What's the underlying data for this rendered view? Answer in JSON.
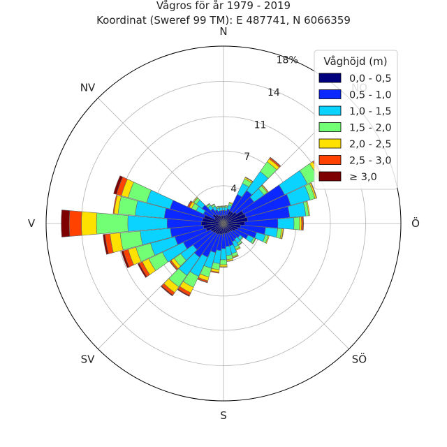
{
  "title_line1": "Vågros för år 1979 - 2019",
  "title_line2": "Koordinat (Sweref 99 TM): E 487741, N 6066359",
  "chart_data": {
    "type": "windrose",
    "title": "Vågros för år 1979 - 2019",
    "subtitle": "Koordinat (Sweref 99 TM): E 487741, N 6066359",
    "direction_labels": [
      "N",
      "NO",
      "Ö",
      "SÖ",
      "S",
      "SV",
      "V",
      "NV"
    ],
    "radial_ticks": [
      {
        "value": 3.75,
        "label": "4"
      },
      {
        "value": 7.2,
        "label": "7"
      },
      {
        "value": 10.6,
        "label": "11"
      },
      {
        "value": 14.1,
        "label": "14"
      },
      {
        "value": 17.6,
        "label": "18%"
      }
    ],
    "rmax": 17.6,
    "sectors": 36,
    "sector_unit": "degrees clockwise from north",
    "legend_title": "Våghöjd (m)",
    "legend_position": "top-right",
    "bins": [
      {
        "label": "0,0 - 0,5",
        "color": "#00007f"
      },
      {
        "label": "0,5 - 1,0",
        "color": "#0a28ff"
      },
      {
        "label": "1,0 - 1,5",
        "color": "#0bd3ff"
      },
      {
        "label": "1,5 - 2,0",
        "color": "#72ff75"
      },
      {
        "label": "2,0 - 2,5",
        "color": "#ffe100"
      },
      {
        "label": "2,5 - 3,0",
        "color": "#ff4200"
      },
      {
        "label": "≥ 3,0",
        "color": "#7f0000"
      }
    ],
    "data": [
      {
        "dir": 0,
        "values": [
          0.8,
          0.5,
          0.3,
          0.1,
          0.05,
          0.0,
          0.0
        ]
      },
      {
        "dir": 10,
        "values": [
          0.8,
          0.5,
          0.3,
          0.15,
          0.05,
          0.0,
          0.0
        ]
      },
      {
        "dir": 20,
        "values": [
          0.9,
          0.6,
          0.4,
          0.2,
          0.1,
          0.0,
          0.0
        ]
      },
      {
        "dir": 30,
        "values": [
          1.4,
          1.8,
          1.2,
          0.5,
          0.15,
          0.05,
          0.0
        ]
      },
      {
        "dir": 40,
        "values": [
          1.4,
          2.6,
          2.3,
          1.2,
          0.35,
          0.15,
          0.05
        ]
      },
      {
        "dir": 50,
        "values": [
          1.6,
          2.1,
          1.2,
          0.4,
          0.1,
          0.05,
          0.0
        ]
      },
      {
        "dir": 60,
        "values": [
          2.2,
          4.5,
          2.5,
          1.2,
          0.35,
          0.15,
          0.05
        ]
      },
      {
        "dir": 70,
        "values": [
          2.3,
          4.6,
          2.0,
          0.5,
          0.15,
          0.05,
          0.0
        ]
      },
      {
        "dir": 80,
        "values": [
          2.4,
          4.2,
          1.6,
          0.3,
          0.1,
          0.0,
          0.0
        ]
      },
      {
        "dir": 90,
        "values": [
          2.1,
          3.3,
          1.6,
          0.55,
          0.2,
          0.15,
          0.05
        ]
      },
      {
        "dir": 100,
        "values": [
          1.7,
          2.5,
          1.2,
          0.4,
          0.15,
          0.05,
          0.0
        ]
      },
      {
        "dir": 110,
        "values": [
          1.5,
          1.9,
          0.9,
          0.3,
          0.1,
          0.0,
          0.0
        ]
      },
      {
        "dir": 120,
        "values": [
          1.3,
          1.4,
          0.6,
          0.2,
          0.05,
          0.0,
          0.0
        ]
      },
      {
        "dir": 130,
        "values": [
          1.1,
          0.9,
          0.3,
          0.1,
          0.0,
          0.0,
          0.0
        ]
      },
      {
        "dir": 140,
        "values": [
          1.0,
          0.9,
          0.5,
          0.2,
          0.05,
          0.0,
          0.0
        ]
      },
      {
        "dir": 150,
        "values": [
          1.0,
          1.0,
          0.6,
          0.25,
          0.1,
          0.0,
          0.0
        ]
      },
      {
        "dir": 160,
        "values": [
          1.0,
          1.3,
          0.8,
          0.3,
          0.1,
          0.05,
          0.0
        ]
      },
      {
        "dir": 170,
        "values": [
          1.0,
          1.3,
          0.9,
          0.4,
          0.15,
          0.05,
          0.0
        ]
      },
      {
        "dir": 180,
        "values": [
          1.0,
          1.5,
          1.1,
          0.5,
          0.2,
          0.05,
          0.0
        ]
      },
      {
        "dir": 190,
        "values": [
          1.1,
          1.6,
          1.3,
          0.6,
          0.25,
          0.1,
          0.0
        ]
      },
      {
        "dir": 200,
        "values": [
          1.1,
          1.9,
          1.6,
          0.9,
          0.4,
          0.15,
          0.05
        ]
      },
      {
        "dir": 210,
        "values": [
          1.2,
          2.5,
          2.1,
          1.2,
          0.6,
          0.3,
          0.1
        ]
      },
      {
        "dir": 220,
        "values": [
          1.2,
          2.9,
          2.2,
          1.4,
          0.7,
          0.3,
          0.1
        ]
      },
      {
        "dir": 230,
        "values": [
          1.3,
          2.4,
          1.5,
          0.8,
          0.35,
          0.15,
          0.05
        ]
      },
      {
        "dir": 240,
        "values": [
          1.4,
          3.0,
          2.3,
          1.5,
          0.7,
          0.35,
          0.15
        ]
      },
      {
        "dir": 250,
        "values": [
          1.8,
          3.2,
          2.5,
          1.5,
          0.8,
          0.5,
          0.2
        ]
      },
      {
        "dir": 260,
        "values": [
          2.0,
          3.3,
          3.0,
          2.0,
          1.0,
          0.5,
          0.2
        ]
      },
      {
        "dir": 270,
        "values": [
          2.2,
          3.4,
          3.9,
          3.1,
          1.5,
          1.2,
          0.8
        ]
      },
      {
        "dir": 280,
        "values": [
          2.1,
          3.8,
          2.9,
          1.7,
          0.4,
          0.1,
          0.0
        ]
      },
      {
        "dir": 290,
        "values": [
          2.0,
          3.5,
          2.4,
          1.9,
          0.7,
          0.5,
          0.3
        ]
      },
      {
        "dir": 300,
        "values": [
          1.0,
          1.2,
          0.8,
          0.5,
          0.25,
          0.15,
          0.05
        ]
      },
      {
        "dir": 310,
        "values": [
          1.3,
          1.3,
          0.7,
          0.3,
          0.1,
          0.0,
          0.0
        ]
      },
      {
        "dir": 320,
        "values": [
          1.1,
          0.7,
          0.4,
          0.2,
          0.05,
          0.0,
          0.0
        ]
      },
      {
        "dir": 330,
        "values": [
          0.9,
          0.6,
          0.4,
          0.2,
          0.05,
          0.0,
          0.0
        ]
      },
      {
        "dir": 340,
        "values": [
          0.8,
          0.5,
          0.3,
          0.15,
          0.05,
          0.0,
          0.0
        ]
      },
      {
        "dir": 350,
        "values": [
          0.8,
          0.5,
          0.3,
          0.1,
          0.05,
          0.0,
          0.0
        ]
      }
    ]
  }
}
